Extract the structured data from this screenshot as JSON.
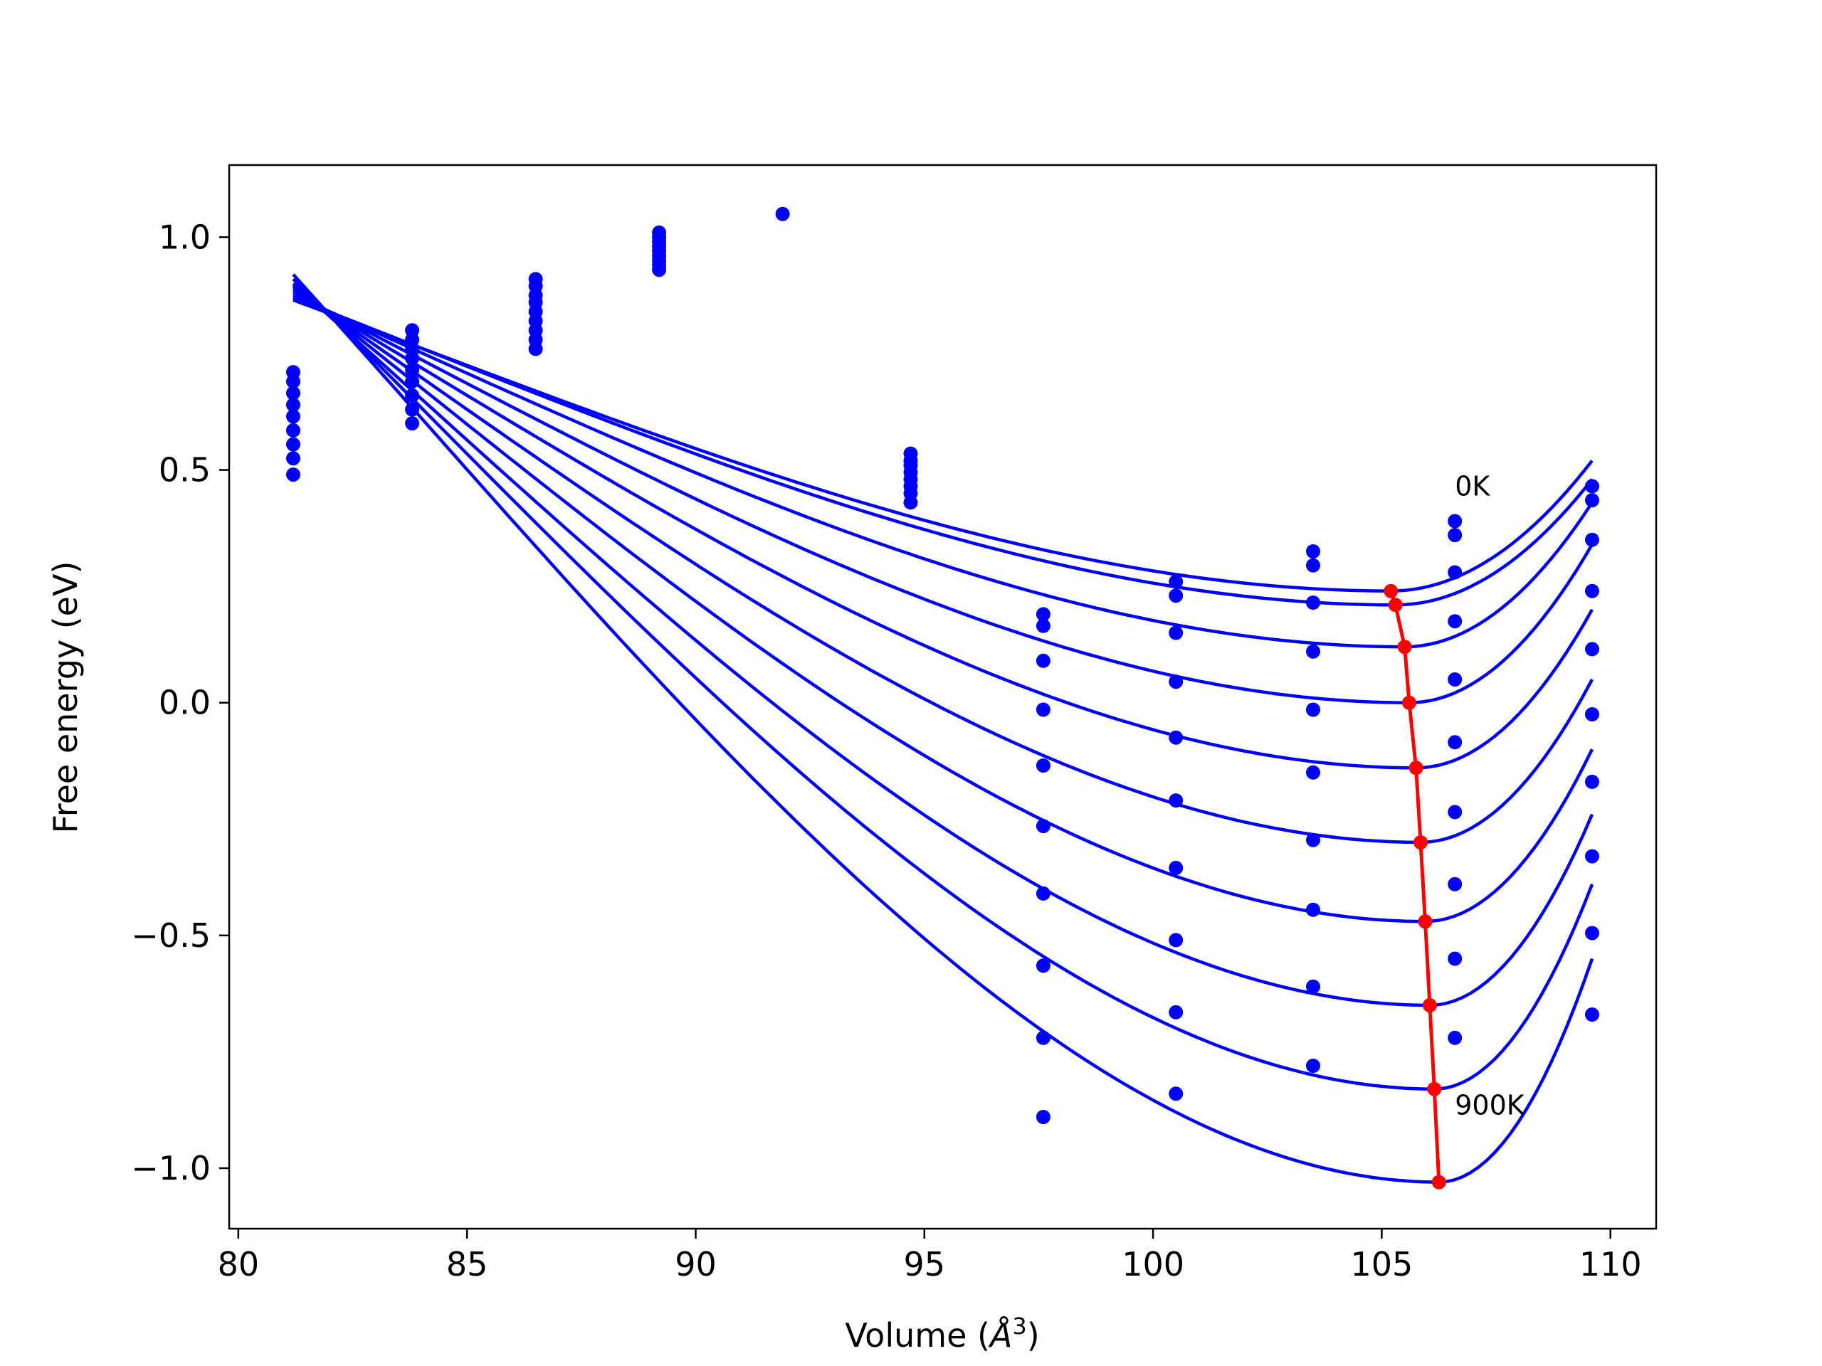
{
  "chart_data": {
    "type": "scatter",
    "title": "",
    "xlabel": "Volume (",
    "xlabel_sym": "Å",
    "xlabel_sup": "3",
    "xlabel_end": ")",
    "ylabel": "Free energy (eV)",
    "xlim": [
      79.8,
      111.0
    ],
    "ylim": [
      -1.13,
      1.155
    ],
    "xticks": [
      80,
      85,
      90,
      95,
      100,
      105,
      110
    ],
    "xtick_labels": [
      "80",
      "85",
      "90",
      "95",
      "100",
      "105",
      "110"
    ],
    "yticks": [
      -1.0,
      -0.5,
      0.0,
      0.5,
      1.0
    ],
    "ytick_labels": [
      "−1.0",
      "−0.5",
      "0.0",
      "0.5",
      "1.0"
    ],
    "grid": false,
    "colors": {
      "curves": "#0000ff",
      "minima": "#ff0000",
      "axes": "#000000"
    },
    "annotations": [
      {
        "text": "0K",
        "x": 106.6,
        "y": 0.5
      },
      {
        "text": "900K",
        "x": 106.6,
        "y": -0.83
      }
    ],
    "volumes": [
      81.2,
      83.8,
      86.5,
      89.2,
      91.9,
      94.7,
      97.6,
      100.5,
      103.5,
      106.6,
      109.6
    ],
    "curves": [
      {
        "minimum": {
          "x": 105.2,
          "y": 0.24
        },
        "y_at_xmin": 0.865,
        "y_at_xmax": 0.52
      },
      {
        "minimum": {
          "x": 105.3,
          "y": 0.21
        },
        "y_at_xmin": 0.87,
        "y_at_xmax": 0.48
      },
      {
        "minimum": {
          "x": 105.5,
          "y": 0.12
        },
        "y_at_xmin": 0.875,
        "y_at_xmax": 0.43
      },
      {
        "minimum": {
          "x": 105.6,
          "y": 0.0
        },
        "y_at_xmin": 0.88,
        "y_at_xmax": 0.34
      },
      {
        "minimum": {
          "x": 105.75,
          "y": -0.14
        },
        "y_at_xmin": 0.885,
        "y_at_xmax": 0.2
      },
      {
        "minimum": {
          "x": 105.85,
          "y": -0.3
        },
        "y_at_xmin": 0.89,
        "y_at_xmax": 0.05
      },
      {
        "minimum": {
          "x": 105.95,
          "y": -0.47
        },
        "y_at_xmin": 0.895,
        "y_at_xmax": -0.1
      },
      {
        "minimum": {
          "x": 106.05,
          "y": -0.65
        },
        "y_at_xmin": 0.9,
        "y_at_xmax": -0.24
      },
      {
        "minimum": {
          "x": 106.15,
          "y": -0.83
        },
        "y_at_xmin": 0.91,
        "y_at_xmax": -0.39
      },
      {
        "minimum": {
          "x": 106.25,
          "y": -1.03
        },
        "y_at_xmin": 0.92,
        "y_at_xmax": -0.55
      }
    ],
    "points": [
      {
        "x": 81.2,
        "y": [
          0.71,
          0.69,
          0.665,
          0.64,
          0.615,
          0.585,
          0.555,
          0.525,
          0.49
        ]
      },
      {
        "x": 83.8,
        "y": [
          0.8,
          0.78,
          0.76,
          0.74,
          0.715,
          0.69,
          0.66,
          0.63,
          0.6
        ]
      },
      {
        "x": 86.5,
        "y": [
          0.91,
          0.895,
          0.875,
          0.86,
          0.84,
          0.82,
          0.8,
          0.78,
          0.76
        ]
      },
      {
        "x": 89.2,
        "y": [
          1.01,
          1.0,
          0.99,
          0.98,
          0.97,
          0.96,
          0.95,
          0.94,
          0.93
        ]
      },
      {
        "x": 91.9,
        "y": [
          1.05
        ]
      },
      {
        "x": 94.7,
        "y": [
          0.535,
          0.52,
          0.51,
          0.495,
          0.48,
          0.465,
          0.45,
          0.43
        ]
      },
      {
        "x": 97.6,
        "y": [
          0.19,
          0.165,
          0.09,
          -0.015,
          -0.135,
          -0.265,
          -0.41,
          -0.565,
          -0.72,
          -0.89
        ]
      },
      {
        "x": 100.5,
        "y": [
          0.26,
          0.23,
          0.15,
          0.045,
          -0.075,
          -0.21,
          -0.355,
          -0.51,
          -0.665,
          -0.84
        ]
      },
      {
        "x": 103.5,
        "y": [
          0.325,
          0.295,
          0.215,
          0.11,
          -0.015,
          -0.15,
          -0.295,
          -0.445,
          -0.61,
          -0.78
        ]
      },
      {
        "x": 106.6,
        "y": [
          0.39,
          0.36,
          0.28,
          0.175,
          0.05,
          -0.085,
          -0.235,
          -0.39,
          -0.55,
          -0.72
        ]
      },
      {
        "x": 109.6,
        "y": [
          0.465,
          0.435,
          0.35,
          0.24,
          0.115,
          -0.025,
          -0.17,
          -0.33,
          -0.495,
          -0.67
        ]
      }
    ]
  }
}
